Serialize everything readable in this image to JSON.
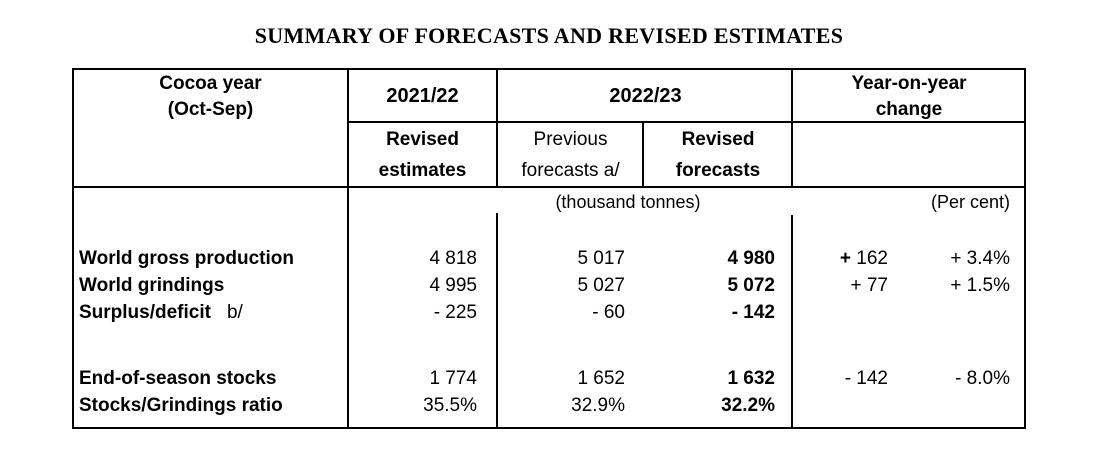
{
  "title": "SUMMARY OF FORECASTS AND REVISED ESTIMATES",
  "header": {
    "cocoa_year_line1": "Cocoa year",
    "cocoa_year_line2": "(Oct-Sep)",
    "col_2021_22": "2021/22",
    "col_2022_23": "2022/23",
    "yoy_line1": "Year-on-year",
    "yoy_line2": "change",
    "sub_2021_22_line1": "Revised",
    "sub_2021_22_line2": "estimates",
    "sub_previous_line1": "Previous",
    "sub_previous_line2": "forecasts a/",
    "sub_revised_line1": "Revised",
    "sub_revised_line2": "forecasts"
  },
  "units": {
    "tonnes": "(thousand tonnes)",
    "percent": "(Per cent)"
  },
  "rows": [
    {
      "label": "World gross production",
      "suffix": "",
      "est_2021_22": "4 818",
      "previous": "5 017",
      "revised": "4 980",
      "change_tonnes": "+ 162",
      "change_tonnes_bold_sign": true,
      "change_percent": "+ 3.4%"
    },
    {
      "label": "World grindings",
      "suffix": "",
      "est_2021_22": "4 995",
      "previous": "5 027",
      "revised": "5 072",
      "change_tonnes": "+ 77",
      "change_percent": "+ 1.5%"
    },
    {
      "label": "Surplus/deficit",
      "suffix": "b/",
      "est_2021_22": "- 225",
      "previous": "- 60",
      "revised": "- 142",
      "change_tonnes": "",
      "change_percent": ""
    },
    {
      "spacer": true
    },
    {
      "label": "End-of-season stocks",
      "suffix": "",
      "est_2021_22": "1 774",
      "previous": "1 652",
      "revised": "1 632",
      "change_tonnes": "- 142",
      "change_percent": "- 8.0%"
    },
    {
      "label": "Stocks/Grindings ratio",
      "suffix": "",
      "est_2021_22": "35.5%",
      "previous": "32.9%",
      "revised": "32.2%",
      "change_tonnes": "",
      "change_percent": ""
    }
  ],
  "colors": {
    "text": "#000000",
    "border": "#000000",
    "background": "#ffffff"
  }
}
